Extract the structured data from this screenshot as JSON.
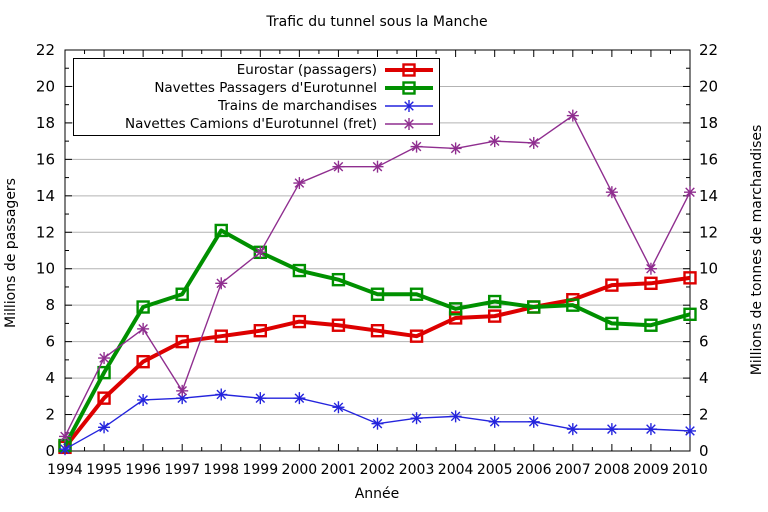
{
  "chart_data": {
    "type": "line",
    "title": "Trafic du tunnel sous la Manche",
    "xlabel": "Année",
    "ylabel_left": "Millions de passagers",
    "ylabel_right": "Millions de tonnes de marchandises",
    "x": [
      1994,
      1995,
      1996,
      1997,
      1998,
      1999,
      2000,
      2001,
      2002,
      2003,
      2004,
      2005,
      2006,
      2007,
      2008,
      2009,
      2010
    ],
    "ylim": [
      0,
      22
    ],
    "ytick_step": 2,
    "grid": true,
    "legend_position": "top-left",
    "background": "#ffffff",
    "grid_color": "#b3b3b3",
    "series": [
      {
        "name": "Eurostar (passagers)",
        "color": "#dd0000",
        "marker": "square",
        "line_width": 4,
        "values": [
          0.2,
          2.9,
          4.9,
          6.0,
          6.3,
          6.6,
          7.1,
          6.9,
          6.6,
          6.3,
          7.3,
          7.4,
          7.9,
          8.3,
          9.1,
          9.2,
          9.5
        ]
      },
      {
        "name": "Navettes Passagers d'Eurotunnel",
        "color": "#009000",
        "marker": "square",
        "line_width": 4,
        "values": [
          0.3,
          4.3,
          7.9,
          8.6,
          12.1,
          10.9,
          9.9,
          9.4,
          8.6,
          8.6,
          7.8,
          8.2,
          7.9,
          8.0,
          7.0,
          6.9,
          7.5
        ]
      },
      {
        "name": "Trains de marchandises",
        "color": "#2424dd",
        "marker": "star",
        "line_width": 1.4,
        "values": [
          0.1,
          1.3,
          2.8,
          2.9,
          3.1,
          2.9,
          2.9,
          2.4,
          1.5,
          1.8,
          1.9,
          1.6,
          1.6,
          1.2,
          1.2,
          1.2,
          1.1
        ]
      },
      {
        "name": "Navettes Camions d'Eurotunnel (fret)",
        "color": "#8f2e8f",
        "marker": "star",
        "line_width": 1.4,
        "values": [
          0.8,
          5.1,
          6.7,
          3.3,
          9.2,
          10.9,
          14.7,
          15.6,
          15.6,
          16.7,
          16.6,
          17.0,
          16.9,
          18.4,
          14.2,
          10.0,
          14.2
        ]
      }
    ]
  }
}
